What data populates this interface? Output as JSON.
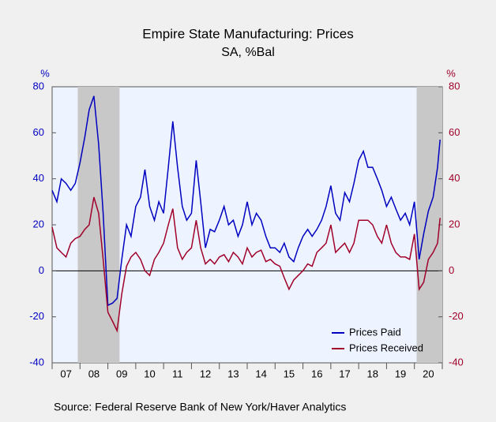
{
  "chart_data": {
    "type": "line",
    "title": "Empire State Manufacturing: Prices",
    "subtitle": "SA, %Bal",
    "y_label": "%",
    "y2_label": "%",
    "source": "Source:  Federal Reserve Bank of New York/Haver Analytics",
    "x": [
      2007,
      2007.17,
      2007.33,
      2007.5,
      2007.67,
      2007.83,
      2008,
      2008.17,
      2008.33,
      2008.5,
      2008.67,
      2008.83,
      2009,
      2009.17,
      2009.33,
      2009.5,
      2009.67,
      2009.83,
      2010,
      2010.17,
      2010.33,
      2010.5,
      2010.67,
      2010.83,
      2011,
      2011.17,
      2011.33,
      2011.5,
      2011.67,
      2011.83,
      2012,
      2012.17,
      2012.33,
      2012.5,
      2012.67,
      2012.83,
      2013,
      2013.17,
      2013.33,
      2013.5,
      2013.67,
      2013.83,
      2014,
      2014.17,
      2014.33,
      2014.5,
      2014.67,
      2014.83,
      2015,
      2015.17,
      2015.33,
      2015.5,
      2015.67,
      2015.83,
      2016,
      2016.17,
      2016.33,
      2016.5,
      2016.67,
      2016.83,
      2017,
      2017.17,
      2017.33,
      2017.5,
      2017.67,
      2017.83,
      2018,
      2018.17,
      2018.33,
      2018.5,
      2018.67,
      2018.83,
      2019,
      2019.17,
      2019.33,
      2019.5,
      2019.67,
      2019.83,
      2020,
      2020.17,
      2020.33,
      2020.5,
      2020.67,
      2020.83,
      2020.92
    ],
    "series": [
      {
        "name": "Prices Paid",
        "color": "#0000c0",
        "values": [
          35,
          30,
          40,
          38,
          35,
          38,
          47,
          58,
          70,
          76,
          55,
          25,
          -15,
          -14,
          -12,
          5,
          20,
          15,
          28,
          32,
          44,
          28,
          22,
          30,
          25,
          45,
          65,
          45,
          28,
          22,
          25,
          48,
          30,
          10,
          18,
          17,
          22,
          28,
          20,
          22,
          15,
          20,
          30,
          20,
          25,
          22,
          15,
          10,
          10,
          8,
          12,
          6,
          4,
          10,
          15,
          18,
          15,
          18,
          22,
          28,
          37,
          25,
          22,
          34,
          30,
          38,
          48,
          52,
          45,
          45,
          40,
          35,
          28,
          32,
          27,
          22,
          25,
          20,
          30,
          5,
          16,
          26,
          32,
          45,
          57
        ]
      },
      {
        "name": "Prices Received",
        "color": "#a0002a",
        "axis": "y2",
        "values": [
          19,
          10,
          8,
          6,
          12,
          14,
          15,
          18,
          20,
          32,
          25,
          5,
          -18,
          -22,
          -26,
          -10,
          2,
          6,
          8,
          5,
          0,
          -2,
          5,
          8,
          12,
          20,
          27,
          10,
          5,
          8,
          10,
          22,
          10,
          3,
          5,
          3,
          6,
          7,
          4,
          8,
          6,
          3,
          10,
          6,
          8,
          9,
          4,
          5,
          3,
          2,
          -3,
          -8,
          -4,
          -2,
          0,
          3,
          2,
          8,
          10,
          12,
          20,
          8,
          10,
          12,
          8,
          12,
          22,
          22,
          22,
          20,
          15,
          12,
          20,
          12,
          8,
          6,
          6,
          5,
          16,
          -8,
          -5,
          5,
          8,
          12,
          23
        ]
      }
    ],
    "xlim": [
      2007,
      2021
    ],
    "xticks": [
      {
        "value": 2007.5,
        "label": "07"
      },
      {
        "value": 2008.5,
        "label": "08"
      },
      {
        "value": 2009.5,
        "label": "09"
      },
      {
        "value": 2010.5,
        "label": "10"
      },
      {
        "value": 2011.5,
        "label": "11"
      },
      {
        "value": 2012.5,
        "label": "12"
      },
      {
        "value": 2013.5,
        "label": "13"
      },
      {
        "value": 2014.5,
        "label": "14"
      },
      {
        "value": 2015.5,
        "label": "15"
      },
      {
        "value": 2016.5,
        "label": "16"
      },
      {
        "value": 2017.5,
        "label": "17"
      },
      {
        "value": 2018.5,
        "label": "18"
      },
      {
        "value": 2019.5,
        "label": "19"
      },
      {
        "value": 2020.5,
        "label": "20"
      }
    ],
    "ylim": [
      -40,
      80
    ],
    "yticks": [
      -40,
      -20,
      0,
      20,
      40,
      60,
      80
    ],
    "y2lim": [
      -40,
      80
    ],
    "y2ticks": [
      -40,
      -20,
      0,
      20,
      40,
      60,
      80
    ],
    "shaded_periods": [
      [
        2007.92,
        2009.42
      ],
      [
        2020.08,
        2021
      ]
    ],
    "legend": "lower right"
  }
}
